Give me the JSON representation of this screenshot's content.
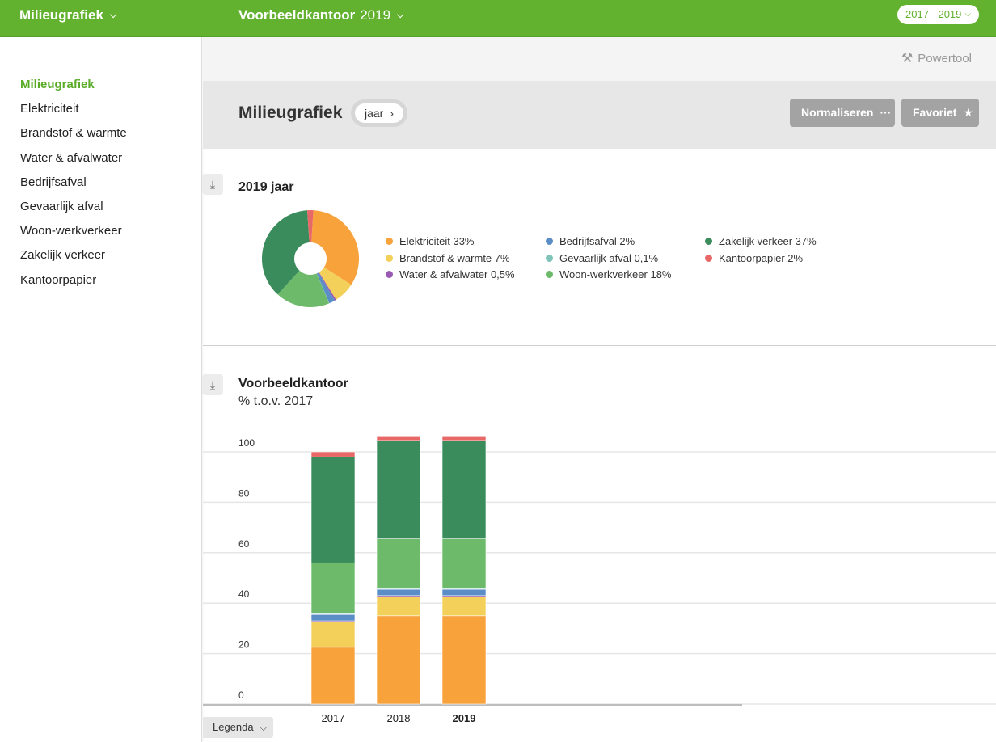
{
  "topbar": {
    "app_title": "Milieugrafiek",
    "office_name": "Voorbeeldkantoor",
    "office_year": "2019",
    "year_range": "2017 - 2019",
    "color": "#62b22f"
  },
  "sidebar": {
    "items": [
      {
        "label": "Milieugrafiek",
        "active": true
      },
      {
        "label": "Elektriciteit"
      },
      {
        "label": "Brandstof & warmte"
      },
      {
        "label": "Water & afvalwater"
      },
      {
        "label": "Bedrijfsafval"
      },
      {
        "label": "Gevaarlijk afval"
      },
      {
        "label": "Woon-werkverkeer"
      },
      {
        "label": "Zakelijk verkeer"
      },
      {
        "label": "Kantoorpapier"
      }
    ]
  },
  "toolbar": {
    "powertool": "Powertool"
  },
  "header": {
    "title": "Milieugrafiek",
    "period": "jaar",
    "normalize_label": "Normaliseren",
    "favorite_label": "Favoriet"
  },
  "pie_section": {
    "title": "2019 jaar"
  },
  "bar_section": {
    "title": "Voorbeeldkantoor",
    "subtitle": "% t.o.v. 2017"
  },
  "legend_button": "Legenda",
  "chart_data": [
    {
      "type": "pie",
      "title": "2019 jaar",
      "slices": [
        {
          "label": "Elektriciteit 33%",
          "value": 33,
          "color": "#f7a23b"
        },
        {
          "label": "Brandstof & warmte 7%",
          "value": 7,
          "color": "#f3d05a"
        },
        {
          "label": "Water & afvalwater 0,5%",
          "value": 0.5,
          "color": "#9b59b6"
        },
        {
          "label": "Bedrijfsafval 2%",
          "value": 2,
          "color": "#5b8ec7"
        },
        {
          "label": "Gevaarlijk afval 0,1%",
          "value": 0.1,
          "color": "#7fc4b8"
        },
        {
          "label": "Woon-werkverkeer 18%",
          "value": 18,
          "color": "#6dbb6a"
        },
        {
          "label": "Zakelijk verkeer 37%",
          "value": 37,
          "color": "#3a8c5c"
        },
        {
          "label": "Kantoorpapier 2%",
          "value": 2,
          "color": "#e86868"
        }
      ]
    },
    {
      "type": "bar",
      "stacked": true,
      "title": "Voorbeeldkantoor",
      "subtitle": "% t.o.v. 2017",
      "categories": [
        "2017",
        "2018",
        "2019"
      ],
      "ylim": [
        0,
        100
      ],
      "yticks": [
        "0",
        "20",
        "40",
        "60",
        "80",
        "100"
      ],
      "grid": true,
      "series": [
        {
          "name": "Elektriciteit",
          "color": "#f7a23b",
          "values": [
            22.5,
            35,
            35
          ]
        },
        {
          "name": "Brandstof & warmte",
          "color": "#f3d05a",
          "values": [
            10,
            7.5,
            7.5
          ]
        },
        {
          "name": "Water & afvalwater",
          "color": "#9b59b6",
          "values": [
            0.5,
            0.5,
            0.5
          ]
        },
        {
          "name": "Bedrijfsafval",
          "color": "#5b8ec7",
          "values": [
            2.5,
            2.5,
            2.5
          ]
        },
        {
          "name": "Gevaarlijk afval",
          "color": "#7fc4b8",
          "values": [
            0.3,
            0.3,
            0.3
          ]
        },
        {
          "name": "Woon-werkverkeer",
          "color": "#6dbb6a",
          "values": [
            20.2,
            19.7,
            19.7
          ]
        },
        {
          "name": "Zakelijk verkeer",
          "color": "#3a8c5c",
          "values": [
            42,
            39,
            39
          ]
        },
        {
          "name": "Kantoorpapier",
          "color": "#e86868",
          "values": [
            2,
            1.5,
            1.5
          ]
        }
      ]
    }
  ]
}
